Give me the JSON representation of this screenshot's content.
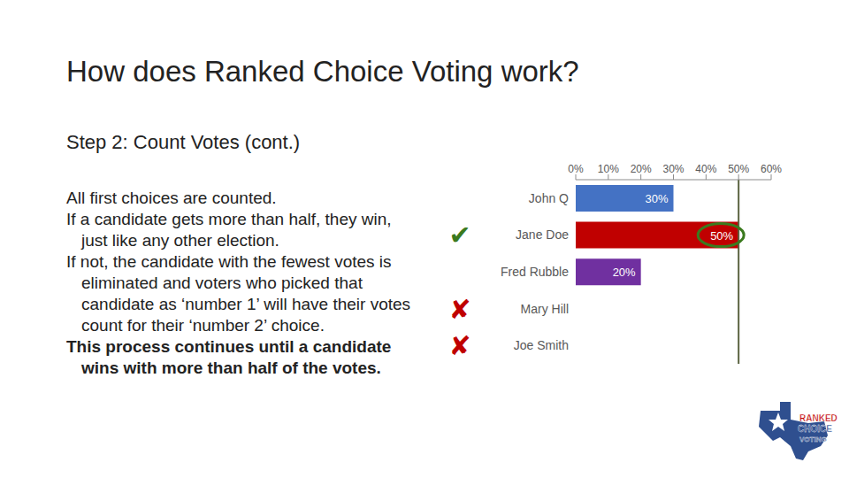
{
  "slide": {
    "title": "How does Ranked Choice Voting work?",
    "subtitle": "Step 2: Count Votes (cont.)",
    "body": [
      {
        "text": "All first choices are counted.",
        "bold": false
      },
      {
        "text": "If a candidate gets more than half, they win, just like any other election.",
        "bold": false
      },
      {
        "text": "If not, the candidate with the fewest votes is eliminated and voters who picked that candidate as ‘number 1’ will have their votes count for their ‘number 2’ choice.",
        "bold": false
      },
      {
        "text": "This process continues until a candidate wins with more than half of the votes.",
        "bold": true
      }
    ],
    "logo": [
      "RANKED",
      "CHOICE",
      "VOTING"
    ]
  },
  "chart_data": {
    "type": "bar",
    "orientation": "horizontal",
    "categories": [
      "John Q",
      "Jane Doe",
      "Fred Rubble",
      "Mary Hill",
      "Joe Smith"
    ],
    "values": [
      30,
      50,
      20,
      null,
      null
    ],
    "value_labels": [
      "30%",
      "50%",
      "20%",
      null,
      null
    ],
    "colors": [
      "#4472c4",
      "#c00000",
      "#7030a0",
      null,
      null
    ],
    "data_labels": true,
    "grid": false,
    "xlim": [
      0,
      60
    ],
    "xticks": [
      {
        "value": 0,
        "label": "0%"
      },
      {
        "value": 10,
        "label": "10%"
      },
      {
        "value": 20,
        "label": "20%"
      },
      {
        "value": 30,
        "label": "30%"
      },
      {
        "value": 40,
        "label": "40%"
      },
      {
        "value": 50,
        "label": "50%"
      },
      {
        "value": 60,
        "label": "60%"
      }
    ],
    "reference_line": 50,
    "highlight": "Jane Doe",
    "row_marks": [
      null,
      {
        "label": "✔",
        "color": "#3b7a1e"
      },
      null,
      {
        "label": "✘",
        "color": "#c00000"
      },
      {
        "label": "✘",
        "color": "#c00000"
      }
    ]
  }
}
